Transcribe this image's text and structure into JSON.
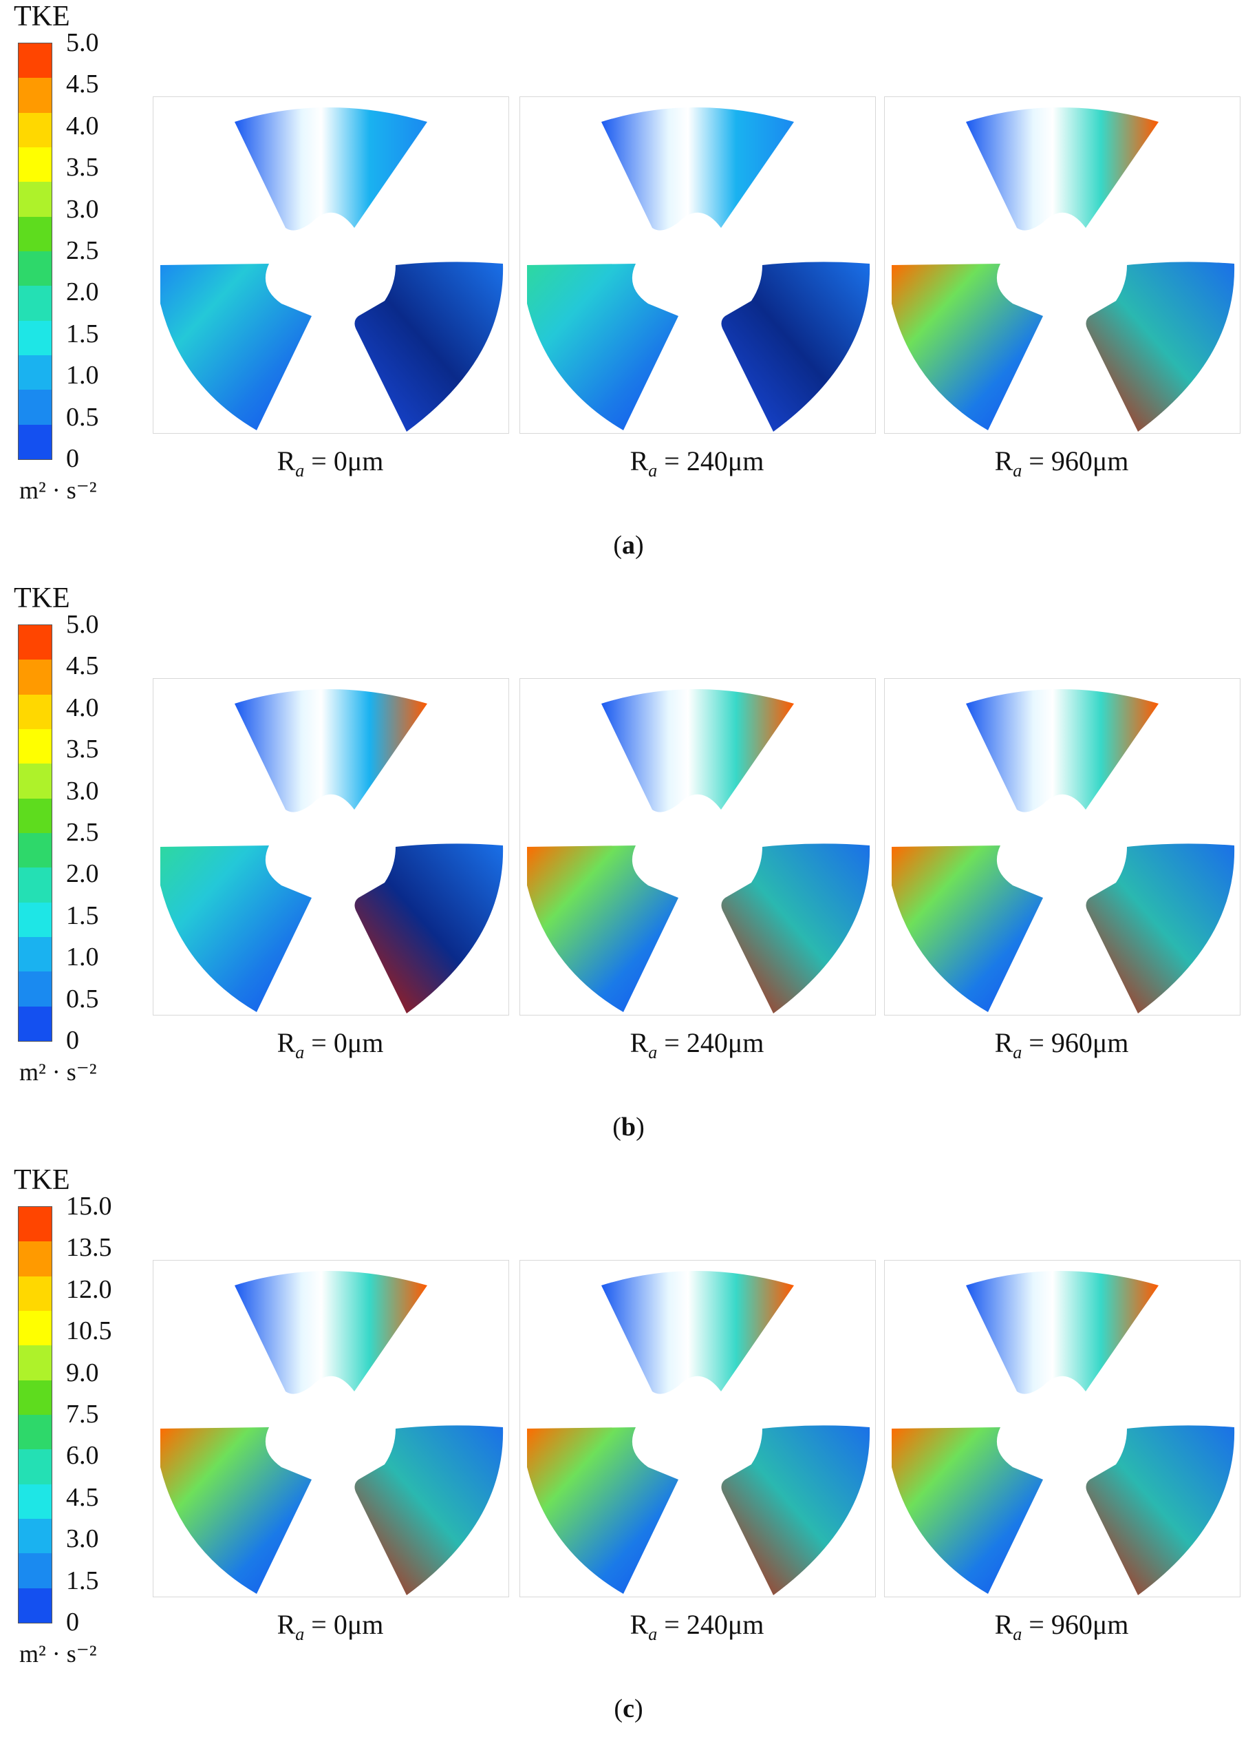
{
  "figure": {
    "rows": [
      {
        "caption_letter": "a",
        "legend": {
          "title": "TKE",
          "ticks": [
            "5.0",
            "4.5",
            "4.0",
            "3.5",
            "3.0",
            "2.5",
            "2.0",
            "1.5",
            "1.0",
            "0.5",
            "0"
          ],
          "unit": "m² · s⁻²",
          "colors": [
            "#ff4500",
            "#ff9a00",
            "#ffd800",
            "#ffff00",
            "#aef22a",
            "#5edc1e",
            "#2ed86a",
            "#24e0b4",
            "#1ee6e6",
            "#1ab2f0",
            "#1a8af0",
            "#1450f0"
          ]
        },
        "panels": [
          {
            "label_r": "R",
            "label_sub": "a",
            "label_rest": " = 0μm",
            "intensity": 0.0
          },
          {
            "label_r": "R",
            "label_sub": "a",
            "label_rest": " = 240μm",
            "intensity": 0.3
          },
          {
            "label_r": "R",
            "label_sub": "a",
            "label_rest": " = 960μm",
            "intensity": 0.6
          }
        ]
      },
      {
        "caption_letter": "b",
        "legend": {
          "title": "TKE",
          "ticks": [
            "5.0",
            "4.5",
            "4.0",
            "3.5",
            "3.0",
            "2.5",
            "2.0",
            "1.5",
            "1.0",
            "0.5",
            "0"
          ],
          "unit": "m² · s⁻²",
          "colors": [
            "#ff4500",
            "#ff9a00",
            "#ffd800",
            "#ffff00",
            "#aef22a",
            "#5edc1e",
            "#2ed86a",
            "#24e0b4",
            "#1ee6e6",
            "#1ab2f0",
            "#1a8af0",
            "#1450f0"
          ]
        },
        "panels": [
          {
            "label_r": "R",
            "label_sub": "a",
            "label_rest": " = 0μm",
            "intensity": 0.35
          },
          {
            "label_r": "R",
            "label_sub": "a",
            "label_rest": " = 240μm",
            "intensity": 0.55
          },
          {
            "label_r": "R",
            "label_sub": "a",
            "label_rest": " = 960μm",
            "intensity": 0.8
          }
        ]
      },
      {
        "caption_letter": "c",
        "legend": {
          "title": "TKE",
          "ticks": [
            "15.0",
            "13.5",
            "12.0",
            "10.5",
            "9.0",
            "7.5",
            "6.0",
            "4.5",
            "3.0",
            "1.5",
            "0"
          ],
          "unit": "m² · s⁻²",
          "colors": [
            "#ff4500",
            "#ff9a00",
            "#ffd800",
            "#ffff00",
            "#aef22a",
            "#5edc1e",
            "#2ed86a",
            "#24e0b4",
            "#1ee6e6",
            "#1ab2f0",
            "#1a8af0",
            "#1450f0"
          ]
        },
        "panels": [
          {
            "label_r": "R",
            "label_sub": "a",
            "label_rest": " = 0μm",
            "intensity": 0.7
          },
          {
            "label_r": "R",
            "label_sub": "a",
            "label_rest": " = 240μm",
            "intensity": 0.7
          },
          {
            "label_r": "R",
            "label_sub": "a",
            "label_rest": " = 960μm",
            "intensity": 0.72
          }
        ]
      }
    ]
  }
}
